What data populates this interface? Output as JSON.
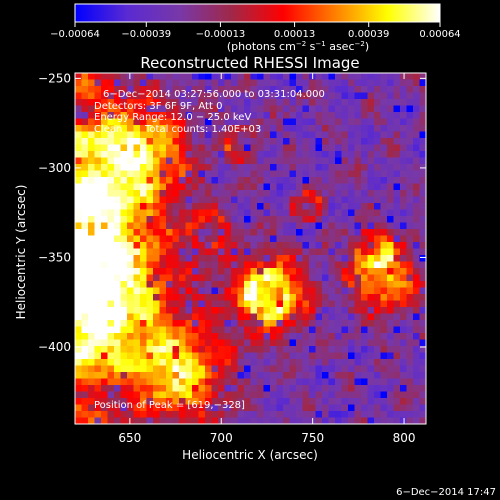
{
  "chart_data": {
    "type": "heatmap",
    "title": "Reconstructed RHESSI Image",
    "xlabel": "Heliocentric X (arcsec)",
    "ylabel": "Heliocentric Y (arcsec)",
    "xlim": [
      620,
      812
    ],
    "ylim": [
      -443,
      -247
    ],
    "x_ticks": [
      650,
      700,
      750,
      800
    ],
    "x_tick_labels": [
      "650",
      "700",
      "750",
      "800"
    ],
    "y_ticks": [
      -250,
      -300,
      -350,
      -400
    ],
    "y_tick_labels": [
      "−250",
      "−300",
      "−350",
      "−400"
    ],
    "colorbar": {
      "min": -0.00064,
      "max": 0.00064,
      "ticks": [
        -0.00064,
        -0.00039,
        -0.00013,
        0.00013,
        0.00039,
        0.00064
      ],
      "tick_labels": [
        "−0.00064",
        "−0.00039",
        "−0.00013",
        "0.00013",
        "0.00039",
        "0.00064"
      ],
      "units_main": "(photons cm",
      "units_exp1": "−2",
      "units_mid1": " s",
      "units_exp2": "−1",
      "units_mid2": " asec",
      "units_exp3": "−2",
      "units_end": ")",
      "colormap": [
        "#0000ff",
        "#5a2ad2",
        "#7838a8",
        "#a02848",
        "#ff0000",
        "#ff8000",
        "#ffff00",
        "#ffffff"
      ]
    },
    "annotations": [
      "6−Dec−2014 03:27:56.000 to 03:31:04.000",
      "Detectors: 3F 6F 9F, Att 0",
      "Energy Range: 12.0 − 25.0 keV"
    ],
    "clean_label": "Clean",
    "total_counts_label": "Total counts: 1.40E+03",
    "peak_label": "Position of Peak = [619,−328]",
    "peak_position": [
      619,
      -328
    ]
  },
  "footer": {
    "timestamp": "6−Dec−2014 17:47"
  }
}
